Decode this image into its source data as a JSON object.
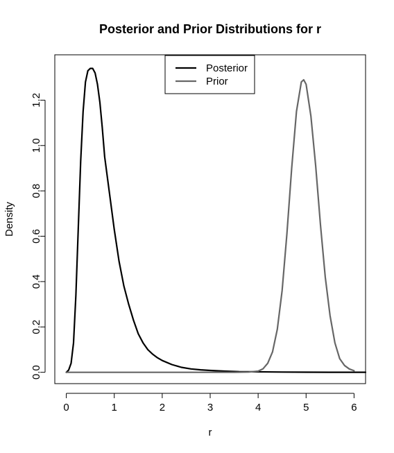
{
  "chart_data": {
    "type": "line",
    "title": "Posterior and Prior Distributions for r",
    "xlabel": "r",
    "ylabel": "Density",
    "xlim": [
      -0.24,
      6.24
    ],
    "ylim": [
      -0.05,
      1.4
    ],
    "x_ticks": [
      0,
      1,
      2,
      3,
      4,
      5,
      6
    ],
    "y_ticks": [
      0.0,
      0.2,
      0.4,
      0.6,
      0.8,
      1.0,
      1.2
    ],
    "x_tick_labels": [
      "0",
      "1",
      "2",
      "3",
      "4",
      "5",
      "6"
    ],
    "y_tick_labels": [
      "0.0",
      "0.2",
      "0.4",
      "0.6",
      "0.8",
      "1.0",
      "1.2"
    ],
    "grid": false,
    "legend_position": "top-center",
    "series": [
      {
        "name": "Posterior",
        "color": "#000000",
        "x": [
          0.0,
          0.05,
          0.1,
          0.15,
          0.2,
          0.25,
          0.3,
          0.35,
          0.4,
          0.45,
          0.5,
          0.55,
          0.6,
          0.65,
          0.7,
          0.75,
          0.8,
          0.9,
          1.0,
          1.1,
          1.2,
          1.3,
          1.4,
          1.5,
          1.6,
          1.7,
          1.8,
          1.9,
          2.0,
          2.2,
          2.4,
          2.6,
          2.8,
          3.0,
          3.3,
          3.6,
          4.0,
          4.5,
          5.0,
          5.5,
          6.0,
          6.24
        ],
        "y": [
          0.0,
          0.01,
          0.04,
          0.13,
          0.34,
          0.64,
          0.93,
          1.15,
          1.28,
          1.33,
          1.34,
          1.34,
          1.32,
          1.27,
          1.19,
          1.08,
          0.95,
          0.79,
          0.63,
          0.49,
          0.38,
          0.3,
          0.23,
          0.17,
          0.13,
          0.1,
          0.08,
          0.064,
          0.052,
          0.034,
          0.022,
          0.015,
          0.011,
          0.008,
          0.005,
          0.003,
          0.002,
          0.001,
          0.0006,
          0.0003,
          0.0002,
          0.0001
        ]
      },
      {
        "name": "Prior",
        "color": "#666666",
        "x": [
          0.0,
          3.0,
          3.5,
          3.8,
          4.0,
          4.1,
          4.2,
          4.3,
          4.4,
          4.5,
          4.6,
          4.7,
          4.8,
          4.9,
          4.95,
          5.0,
          5.1,
          5.2,
          5.3,
          5.4,
          5.5,
          5.6,
          5.7,
          5.8,
          5.9,
          6.0
        ],
        "y": [
          0.0,
          0.0,
          0.0,
          0.001,
          0.005,
          0.015,
          0.04,
          0.09,
          0.19,
          0.36,
          0.61,
          0.9,
          1.15,
          1.28,
          1.29,
          1.27,
          1.13,
          0.91,
          0.65,
          0.42,
          0.25,
          0.13,
          0.06,
          0.03,
          0.015,
          0.007
        ]
      }
    ]
  }
}
